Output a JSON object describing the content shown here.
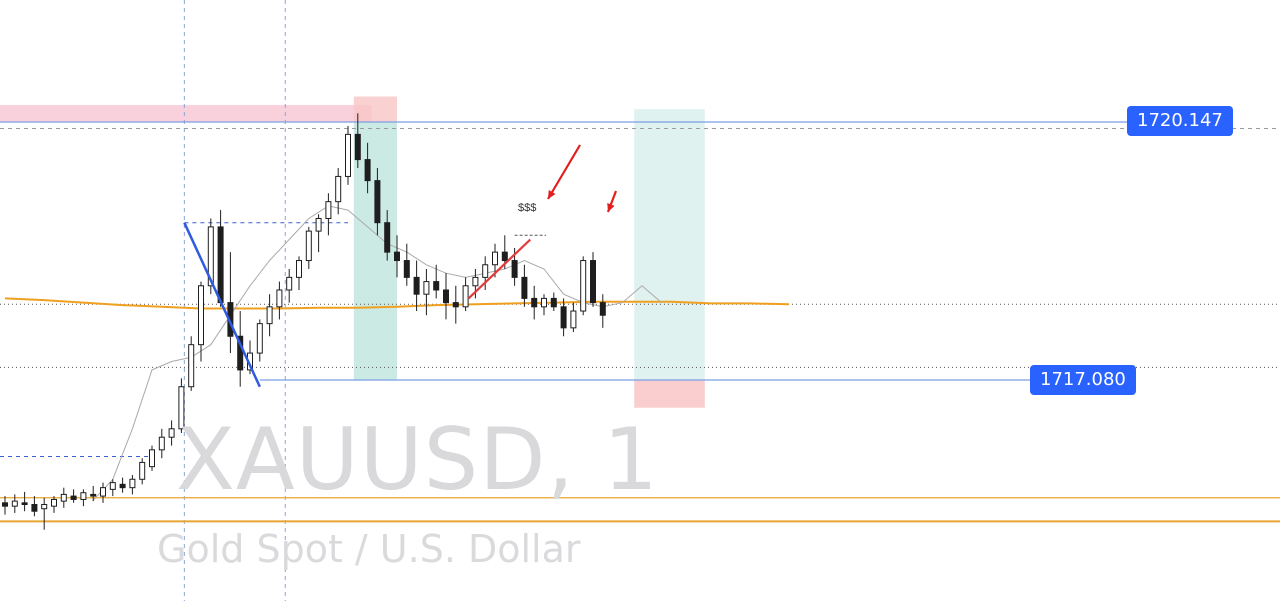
{
  "chart": {
    "symbol_watermark": "XAUUSD, 1",
    "description_watermark": "Gold Spot / U.S. Dollar"
  },
  "price_tags": {
    "upper": "1720.147",
    "lower": "1717.080"
  },
  "annotations": {
    "liquidity_label": "$$$"
  },
  "colors": {
    "candle": "#1e1e1e",
    "moving_average_slow": "#f0a020",
    "moving_average_fast": "#aaaaaa",
    "price_line": "#7b9fe6",
    "price_tag_bg": "#2962ff",
    "support_line": "#e8a530",
    "supply_zone": "#f7c9d6",
    "target_zone": "#c7e8e1",
    "stop_zone": "#f9c6c6",
    "impulse_line": "#2f5be0",
    "trend_line": "#e23b3b",
    "arrow": "#e21f1f"
  },
  "chart_data": {
    "type": "candlestick",
    "symbol": "XAUUSD",
    "timeframe": "1",
    "ylim": [
      1714.5,
      1721.0
    ],
    "horizontal_levels": [
      1720.147,
      1717.08
    ],
    "support_levels": [
      1715.68,
      1715.4
    ],
    "moving_average_slow": [
      [
        0,
        1718.05
      ],
      [
        4,
        1718.03
      ],
      [
        8,
        1718.0
      ],
      [
        12,
        1717.97
      ],
      [
        16,
        1717.95
      ],
      [
        20,
        1717.93
      ],
      [
        24,
        1717.93
      ],
      [
        28,
        1717.93
      ],
      [
        32,
        1717.94
      ],
      [
        36,
        1717.94
      ],
      [
        40,
        1717.95
      ],
      [
        44,
        1717.97
      ],
      [
        48,
        1717.98
      ],
      [
        52,
        1717.99
      ],
      [
        56,
        1718.0
      ],
      [
        60,
        1718.01
      ],
      [
        64,
        1718.01
      ],
      [
        68,
        1718.01
      ],
      [
        72,
        1717.99
      ],
      [
        76,
        1717.99
      ],
      [
        80,
        1717.98
      ]
    ],
    "moving_average_fast": [
      [
        9,
        1715.65
      ],
      [
        11,
        1715.9
      ],
      [
        13,
        1716.5
      ],
      [
        15,
        1717.2
      ],
      [
        17,
        1717.3
      ],
      [
        19,
        1717.35
      ],
      [
        21,
        1717.5
      ],
      [
        23,
        1717.85
      ],
      [
        25,
        1718.2
      ],
      [
        27,
        1718.5
      ],
      [
        29,
        1718.75
      ],
      [
        31,
        1719.0
      ],
      [
        33,
        1719.15
      ],
      [
        35,
        1719.1
      ],
      [
        37,
        1718.9
      ],
      [
        39,
        1718.7
      ],
      [
        41,
        1718.6
      ],
      [
        43,
        1718.45
      ],
      [
        45,
        1718.35
      ],
      [
        47,
        1718.3
      ],
      [
        49,
        1718.35
      ],
      [
        51,
        1718.4
      ],
      [
        53,
        1718.5
      ],
      [
        55,
        1718.4
      ],
      [
        57,
        1718.1
      ],
      [
        59,
        1718.0
      ],
      [
        61,
        1717.95
      ],
      [
        63,
        1718.0
      ],
      [
        65,
        1718.2
      ],
      [
        67,
        1718.0
      ]
    ],
    "candles": [
      [
        1715.62,
        1715.7,
        1715.48,
        1715.58
      ],
      [
        1715.58,
        1715.72,
        1715.5,
        1715.64
      ],
      [
        1715.62,
        1715.75,
        1715.52,
        1715.6
      ],
      [
        1715.6,
        1715.7,
        1715.46,
        1715.52
      ],
      [
        1715.55,
        1715.68,
        1715.3,
        1715.6
      ],
      [
        1715.58,
        1715.7,
        1715.5,
        1715.66
      ],
      [
        1715.64,
        1715.8,
        1715.56,
        1715.72
      ],
      [
        1715.7,
        1715.78,
        1715.62,
        1715.66
      ],
      [
        1715.66,
        1715.78,
        1715.58,
        1715.74
      ],
      [
        1715.72,
        1715.82,
        1715.64,
        1715.7
      ],
      [
        1715.7,
        1715.86,
        1715.62,
        1715.8
      ],
      [
        1715.78,
        1715.9,
        1715.7,
        1715.86
      ],
      [
        1715.84,
        1715.92,
        1715.74,
        1715.8
      ],
      [
        1715.8,
        1715.95,
        1715.72,
        1715.9
      ],
      [
        1715.9,
        1716.15,
        1715.84,
        1716.1
      ],
      [
        1716.05,
        1716.3,
        1716.0,
        1716.25
      ],
      [
        1716.25,
        1716.5,
        1716.15,
        1716.4
      ],
      [
        1716.4,
        1716.6,
        1716.3,
        1716.5
      ],
      [
        1716.5,
        1717.1,
        1716.45,
        1717.0
      ],
      [
        1717.0,
        1717.6,
        1716.95,
        1717.5
      ],
      [
        1717.5,
        1718.25,
        1717.3,
        1718.2
      ],
      [
        1718.2,
        1719.0,
        1718.1,
        1718.9
      ],
      [
        1718.9,
        1719.1,
        1717.95,
        1718.0
      ],
      [
        1718.0,
        1718.6,
        1717.4,
        1717.6
      ],
      [
        1717.6,
        1717.9,
        1717.0,
        1717.2
      ],
      [
        1717.2,
        1717.55,
        1717.15,
        1717.4
      ],
      [
        1717.4,
        1717.8,
        1717.3,
        1717.75
      ],
      [
        1717.75,
        1718.1,
        1717.6,
        1717.95
      ],
      [
        1717.95,
        1718.25,
        1717.8,
        1718.15
      ],
      [
        1718.15,
        1718.4,
        1718.0,
        1718.3
      ],
      [
        1718.3,
        1718.55,
        1718.15,
        1718.5
      ],
      [
        1718.5,
        1718.9,
        1718.4,
        1718.85
      ],
      [
        1718.85,
        1719.05,
        1718.6,
        1719.0
      ],
      [
        1719.0,
        1719.3,
        1718.8,
        1719.2
      ],
      [
        1719.2,
        1719.6,
        1719.05,
        1719.5
      ],
      [
        1719.5,
        1720.1,
        1719.4,
        1720.0
      ],
      [
        1720.0,
        1720.25,
        1719.6,
        1719.7
      ],
      [
        1719.7,
        1719.9,
        1719.3,
        1719.45
      ],
      [
        1719.45,
        1719.6,
        1718.8,
        1718.95
      ],
      [
        1718.95,
        1719.1,
        1718.5,
        1718.6
      ],
      [
        1718.6,
        1718.8,
        1718.3,
        1718.5
      ],
      [
        1718.5,
        1718.7,
        1718.2,
        1718.3
      ],
      [
        1718.3,
        1718.5,
        1717.9,
        1718.1
      ],
      [
        1718.1,
        1718.4,
        1717.85,
        1718.25
      ],
      [
        1718.25,
        1718.45,
        1718.05,
        1718.15
      ],
      [
        1718.15,
        1718.35,
        1717.8,
        1718.0
      ],
      [
        1718.0,
        1718.2,
        1717.75,
        1717.95
      ],
      [
        1717.95,
        1718.3,
        1717.9,
        1718.2
      ],
      [
        1718.2,
        1718.4,
        1718.05,
        1718.3
      ],
      [
        1718.3,
        1718.55,
        1718.15,
        1718.45
      ],
      [
        1718.45,
        1718.7,
        1718.3,
        1718.6
      ],
      [
        1718.6,
        1718.8,
        1718.4,
        1718.5
      ],
      [
        1718.5,
        1718.65,
        1718.2,
        1718.3
      ],
      [
        1718.3,
        1718.45,
        1717.95,
        1718.05
      ],
      [
        1718.05,
        1718.2,
        1717.8,
        1717.95
      ],
      [
        1717.95,
        1718.1,
        1717.85,
        1718.05
      ],
      [
        1718.05,
        1718.12,
        1717.9,
        1717.95
      ],
      [
        1717.95,
        1718.05,
        1717.6,
        1717.7
      ],
      [
        1717.7,
        1718.0,
        1717.65,
        1717.9
      ],
      [
        1717.9,
        1718.55,
        1717.85,
        1718.5
      ],
      [
        1718.5,
        1718.6,
        1717.95,
        1718.0
      ],
      [
        1718.0,
        1718.1,
        1717.7,
        1717.85
      ]
    ]
  }
}
